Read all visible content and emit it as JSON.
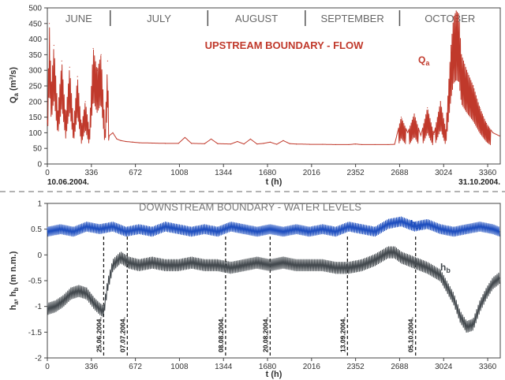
{
  "chart_data": [
    {
      "type": "line",
      "title": "UPSTREAM BOUNDARY - FLOW",
      "ylabel": "Q_a (m³/s)",
      "xlabel": "t  (h)",
      "xlim": [
        0,
        3456
      ],
      "ylim": [
        0,
        500
      ],
      "x_ticks": [
        "0",
        "336",
        "672",
        "1008",
        "1344",
        "1680",
        "2016",
        "2352",
        "2688",
        "3024",
        "3360"
      ],
      "y_ticks": [
        "0",
        "50",
        "100",
        "150",
        "200",
        "250",
        "300",
        "350",
        "400",
        "450",
        "500"
      ],
      "months": [
        "JUNE",
        "JULY",
        "AUGUST",
        "SEPTEMBER",
        "OCTOBER"
      ],
      "month_bounds": [
        480,
        1224,
        1968,
        2688
      ],
      "start_date": "10.06.2004.",
      "end_date": "31.10.2004.",
      "grid": false,
      "series": [
        {
          "name": "Q_a",
          "color": "#c0392b",
          "x": [
            0,
            15,
            30,
            50,
            80,
            110,
            140,
            170,
            200,
            230,
            260,
            290,
            320,
            350,
            380,
            410,
            440,
            460,
            470,
            500,
            530,
            560,
            600,
            650,
            700,
            800,
            900,
            1000,
            1050,
            1100,
            1200,
            1250,
            1300,
            1400,
            1450,
            1500,
            1550,
            1600,
            1650,
            1700,
            1750,
            1800,
            1850,
            1900,
            2000,
            2100,
            2200,
            2300,
            2350,
            2400,
            2500,
            2600,
            2650,
            2700,
            2750,
            2800,
            2850,
            2900,
            2950,
            3000,
            3040,
            3080,
            3100,
            3120,
            3140,
            3160,
            3200,
            3250,
            3300,
            3350,
            3400,
            3450
          ],
          "y": [
            140,
            450,
            250,
            380,
            170,
            330,
            150,
            310,
            130,
            280,
            120,
            200,
            110,
            370,
            300,
            350,
            110,
            330,
            90,
            100,
            80,
            75,
            72,
            70,
            68,
            67,
            66,
            66,
            85,
            66,
            65,
            80,
            65,
            64,
            72,
            64,
            80,
            64,
            66,
            70,
            63,
            75,
            65,
            64,
            63,
            63,
            62,
            62,
            64,
            62,
            62,
            62,
            63,
            150,
            100,
            160,
            90,
            180,
            95,
            200,
            110,
            380,
            470,
            490,
            480,
            350,
            300,
            250,
            180,
            130,
            100,
            90
          ]
        }
      ]
    },
    {
      "type": "line",
      "title": "DOWNSTREAM BOUNDARY - WATER LEVELS",
      "ylabel": "h_a, h_b  (m n.m.)",
      "xlabel": "t  (h)",
      "xlim": [
        0,
        3456
      ],
      "ylim": [
        -2,
        1
      ],
      "x_ticks": [
        "0",
        "336",
        "672",
        "1008",
        "1344",
        "1680",
        "2016",
        "2352",
        "2688",
        "3024",
        "3360"
      ],
      "y_ticks": [
        "-2",
        "-1.5",
        "-1",
        "-0.5",
        "0",
        "0.5",
        "1"
      ],
      "grid": false,
      "series": [
        {
          "name": "h_A",
          "color": "#1f4fbf",
          "x": [
            0,
            100,
            200,
            300,
            400,
            500,
            600,
            700,
            800,
            900,
            1000,
            1100,
            1200,
            1300,
            1400,
            1500,
            1600,
            1700,
            1800,
            1900,
            2000,
            2100,
            2200,
            2300,
            2400,
            2500,
            2600,
            2700,
            2800,
            2900,
            3000,
            3100,
            3200,
            3300,
            3400,
            3450
          ],
          "y": [
            0.45,
            0.5,
            0.45,
            0.55,
            0.5,
            0.55,
            0.45,
            0.5,
            0.45,
            0.55,
            0.5,
            0.45,
            0.5,
            0.45,
            0.55,
            0.5,
            0.45,
            0.5,
            0.45,
            0.5,
            0.45,
            0.5,
            0.45,
            0.55,
            0.5,
            0.45,
            0.6,
            0.65,
            0.55,
            0.6,
            0.5,
            0.45,
            0.5,
            0.55,
            0.5,
            0.45
          ]
        },
        {
          "name": "h_b",
          "color": "#444a4f",
          "x": [
            0,
            60,
            120,
            180,
            240,
            300,
            360,
            400,
            430,
            460,
            500,
            560,
            620,
            700,
            800,
            900,
            1000,
            1100,
            1200,
            1300,
            1400,
            1500,
            1600,
            1700,
            1800,
            1900,
            2000,
            2100,
            2200,
            2300,
            2400,
            2500,
            2600,
            2650,
            2700,
            2800,
            2900,
            3000,
            3100,
            3150,
            3200,
            3250,
            3300,
            3350,
            3400,
            3450
          ],
          "y": [
            -1.05,
            -1.0,
            -0.9,
            -0.75,
            -0.7,
            -0.75,
            -0.95,
            -1.05,
            -1.1,
            -0.6,
            -0.2,
            -0.05,
            -0.15,
            -0.2,
            -0.15,
            -0.2,
            -0.2,
            -0.15,
            -0.2,
            -0.2,
            -0.25,
            -0.2,
            -0.15,
            -0.2,
            -0.15,
            -0.2,
            -0.2,
            -0.2,
            -0.25,
            -0.25,
            -0.2,
            -0.1,
            0.05,
            0.05,
            -0.05,
            -0.15,
            -0.25,
            -0.4,
            -0.85,
            -1.2,
            -1.4,
            -1.35,
            -1.0,
            -0.75,
            -0.55,
            -0.45
          ]
        }
      ],
      "events": [
        {
          "t": 430,
          "label": "25.06.2004."
        },
        {
          "t": 610,
          "label": "07.07.2004."
        },
        {
          "t": 1360,
          "label": "08.08.2004."
        },
        {
          "t": 1700,
          "label": "20.08.2004."
        },
        {
          "t": 2290,
          "label": "13.09.2004."
        },
        {
          "t": 2810,
          "label": "05.10.2004."
        }
      ]
    }
  ]
}
